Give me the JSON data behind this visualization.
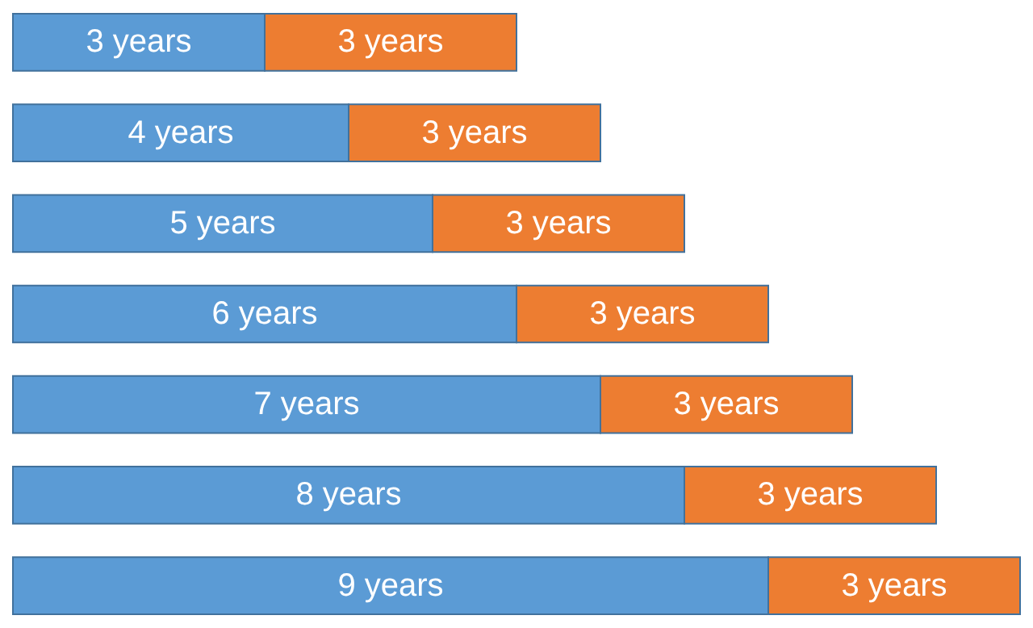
{
  "chart_data": {
    "type": "bar",
    "orientation": "horizontal",
    "stacked": true,
    "categories": [
      null,
      null,
      null,
      null,
      null,
      null,
      null
    ],
    "xlim": [
      0,
      12
    ],
    "series": [
      {
        "color": "#5b9bd5",
        "values": [
          3,
          4,
          5,
          6,
          7,
          8,
          9
        ],
        "value_labels": [
          "3 years",
          "4 years",
          "5 years",
          "6 years",
          "7 years",
          "8 years",
          "9 years"
        ]
      },
      {
        "color": "#ed7d31",
        "values": [
          3,
          3,
          3,
          3,
          3,
          3,
          3
        ],
        "value_labels": [
          "3 years",
          "3 years",
          "3 years",
          "3 years",
          "3 years",
          "3 years",
          "3 years"
        ]
      }
    ]
  }
}
